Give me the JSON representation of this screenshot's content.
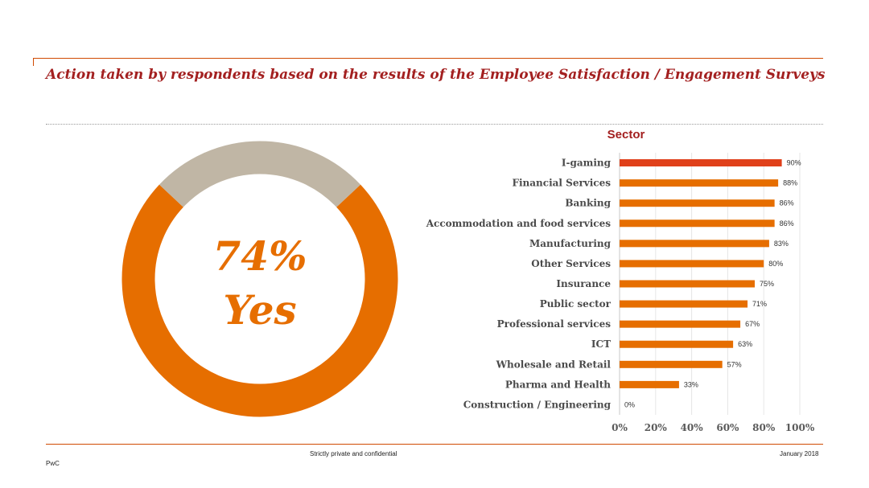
{
  "slide": {
    "title": "Action taken by respondents based on the results of the Employee Satisfaction / Engagement Surveys"
  },
  "footer": {
    "confidential": "Strictly private and confidential",
    "date": "January 2018",
    "brand": "PwC"
  },
  "colors": {
    "accent": "#e66e00",
    "highlight": "#e0401a",
    "remainder": "#c0b6a5",
    "title": "#a32020"
  },
  "chart_data": [
    {
      "type": "pie",
      "variant": "donut",
      "values": [
        {
          "label": "Yes",
          "value": 74
        },
        {
          "label": "",
          "value": 26
        }
      ],
      "display_value": "74%",
      "display_label": "Yes"
    },
    {
      "type": "bar",
      "orientation": "horizontal",
      "title": "Sector",
      "categories": [
        "I-gaming",
        "Financial Services",
        "Banking",
        "Accommodation and food services",
        "Manufacturing",
        "Other Services",
        "Insurance",
        "Public sector",
        "Professional services",
        "ICT",
        "Wholesale and Retail",
        "Pharma and Health",
        "Construction / Engineering"
      ],
      "values": [
        90,
        88,
        86,
        86,
        83,
        80,
        75,
        71,
        67,
        63,
        57,
        33,
        0
      ],
      "value_labels": [
        "90%",
        "88%",
        "86%",
        "86%",
        "83%",
        "80%",
        "75%",
        "71%",
        "67%",
        "63%",
        "57%",
        "33%",
        "0%"
      ],
      "xlim": [
        0,
        100
      ],
      "xticks": [
        "0%",
        "20%",
        "40%",
        "60%",
        "80%",
        "100%"
      ],
      "grid": true,
      "highlight_index": 0
    }
  ]
}
